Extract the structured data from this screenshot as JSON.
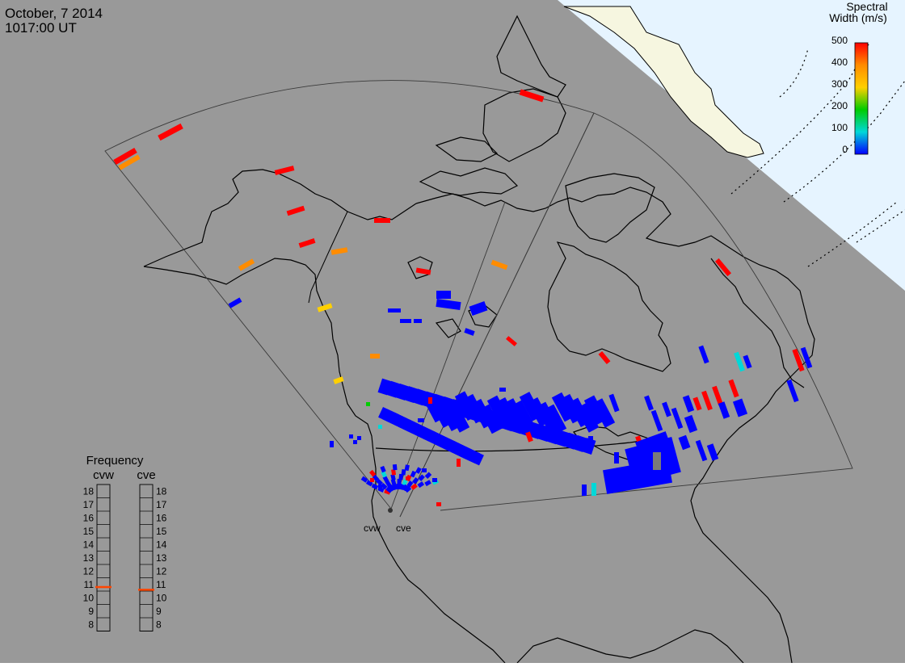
{
  "header": {
    "date": "October, 7 2014",
    "time": "1017:00 UT"
  },
  "colorbar": {
    "title_line1": "Spectral",
    "title_line2": "Width (m/s)",
    "ticks": [
      "500",
      "400",
      "300",
      "200",
      "100",
      "0"
    ],
    "colors": [
      "#ff0000",
      "#ff8c00",
      "#ffd000",
      "#00cc00",
      "#00d8d8",
      "#0000ff"
    ]
  },
  "frequency_panel": {
    "title": "Frequency",
    "left_label": "cvw",
    "right_label": "cve",
    "scale": [
      "18",
      "17",
      "16",
      "15",
      "14",
      "13",
      "12",
      "11",
      "10",
      "9",
      "8"
    ],
    "cvw_marker_mhz": 10.8,
    "cve_marker_mhz": 10.6,
    "marker_color": "#ff4500"
  },
  "radars": [
    {
      "label": "cvw"
    },
    {
      "label": "cve"
    }
  ],
  "map_colors": {
    "background": "#999999",
    "ocean_night": "#9a9a9a",
    "daylight_sea": "#e6f4ff",
    "daylight_land": "#f6f6e0"
  }
}
